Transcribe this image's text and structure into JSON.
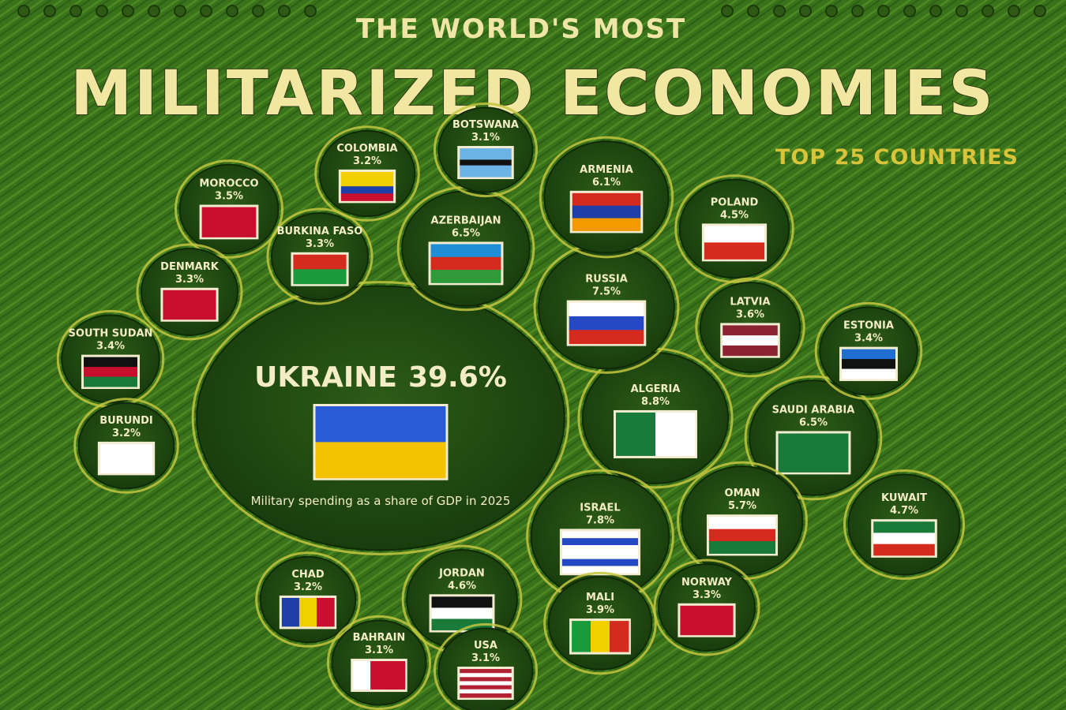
{
  "chart_data": {
    "type": "bubble",
    "title": "THE WORLD'S MOST",
    "subtitle": "MILITARIZED ECONOMIES",
    "annotation": "TOP 25 COUNTRIES",
    "note": "Military spending as a share of GDP in 2025",
    "categories": [
      "UKRAINE",
      "ALGERIA",
      "ISRAEL",
      "RUSSIA",
      "AZERBAIJAN",
      "SAUDI ARABIA",
      "ARMENIA",
      "OMAN",
      "KUWAIT",
      "JORDAN",
      "POLAND",
      "MALI",
      "LATVIA",
      "MOROCCO",
      "SOUTH SUDAN",
      "ESTONIA",
      "BURKINA FASO",
      "DENMARK",
      "NORWAY",
      "COLOMBIA",
      "BURUNDI",
      "CHAD",
      "BOTSWANA",
      "BAHRAIN",
      "USA"
    ],
    "values": [
      39.6,
      8.8,
      7.8,
      7.5,
      6.5,
      6.5,
      6.1,
      5.7,
      4.7,
      4.6,
      4.5,
      3.9,
      3.6,
      3.5,
      3.4,
      3.4,
      3.3,
      3.3,
      3.3,
      3.2,
      3.2,
      3.2,
      3.1,
      3.1,
      3.1
    ],
    "value_labels": [
      "39.6%",
      "8.8%",
      "7.8%",
      "7.5%",
      "6.5%",
      "6.5%",
      "6.1%",
      "5.7%",
      "4.7%",
      "4.6%",
      "4.5%",
      "3.9%",
      "3.6%",
      "3.5%",
      "3.4%",
      "3.4%",
      "3.3%",
      "3.3%",
      "3.3%",
      "3.2%",
      "3.2%",
      "3.2%",
      "3.1%",
      "3.1%",
      "3.1%"
    ],
    "color": "#1f4a10"
  }
}
